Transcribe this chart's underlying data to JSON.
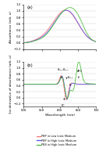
{
  "title_a": "(a)",
  "title_b": "(b)",
  "xlabel": "Wavelength (nm)",
  "ylabel_a": "Absorbance (arb. u)",
  "ylabel_b": "1st derivative of absorbance (arb. u)",
  "xlim": [
    500,
    700
  ],
  "ylim_a": [
    -0.2,
    1.2
  ],
  "ylim_b": [
    -0.3,
    1.2
  ],
  "yticks_a": [
    -0.2,
    0.0,
    0.2,
    0.4,
    0.6,
    0.8,
    1.0,
    1.2
  ],
  "yticks_b": [
    -0.2,
    0.0,
    0.2,
    0.4,
    0.6,
    0.8,
    1.0,
    1.2
  ],
  "xticks": [
    500,
    550,
    600,
    650,
    700
  ],
  "colors": {
    "pbp_low": "#ff7070",
    "pbp_high": "#5555ee",
    "pbs_high": "#44bb33"
  },
  "legend": [
    {
      "label": "PBP in Low Ionic Medium",
      "color": "#ff7070"
    },
    {
      "label": "PBP in High Ionic Medium",
      "color": "#5555ee"
    },
    {
      "label": "PBS in High Ionic Medium",
      "color": "#44bb33"
    }
  ]
}
